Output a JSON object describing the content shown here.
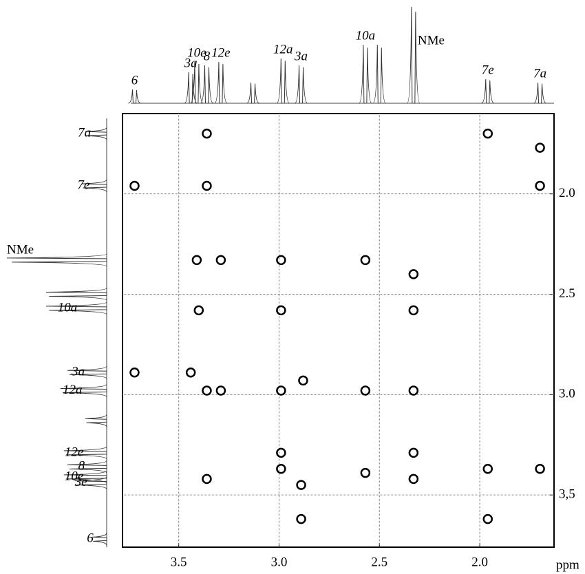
{
  "chart_data": {
    "type": "scatter",
    "xlabel": "ppm",
    "xlim": [
      3.78,
      1.63
    ],
    "ylim": [
      1.6,
      3.76
    ],
    "xticks": [
      {
        "value": 3.5,
        "label": "3.5"
      },
      {
        "value": 3.0,
        "label": "3.0"
      },
      {
        "value": 2.5,
        "label": "2.5"
      },
      {
        "value": 2.0,
        "label": "2.0"
      }
    ],
    "yticks": [
      {
        "value": 2.0,
        "label": "2.0"
      },
      {
        "value": 2.5,
        "label": "2.5"
      },
      {
        "value": 3.0,
        "label": "3.0"
      },
      {
        "value": 3.5,
        "label": "3,5"
      }
    ],
    "grid": true,
    "color": "#000000",
    "x": [
      3.36,
      1.96,
      1.7,
      3.72,
      3.36,
      1.7,
      3.41,
      3.29,
      2.99,
      2.57,
      2.33,
      3.4,
      2.99,
      2.33,
      3.72,
      3.44,
      3.36,
      3.29,
      2.99,
      2.57,
      2.33,
      2.88,
      2.99,
      2.99,
      2.33,
      2.57,
      2.89,
      2.33,
      1.96,
      1.7,
      3.36,
      2.89,
      1.96
    ],
    "values": [
      1.7,
      1.7,
      1.77,
      1.96,
      1.96,
      1.96,
      2.33,
      2.33,
      2.33,
      2.33,
      2.4,
      2.58,
      2.58,
      2.58,
      2.89,
      2.89,
      2.98,
      2.98,
      2.98,
      2.98,
      2.98,
      2.93,
      3.29,
      3.37,
      3.29,
      3.39,
      3.45,
      3.42,
      3.37,
      3.37,
      3.42,
      3.62,
      3.62
    ],
    "signals": [
      {
        "shift": 3.72,
        "intensity": 20,
        "top_label": "6",
        "left_label": "6"
      },
      {
        "shift": 3.44,
        "intensity": 45,
        "top_label": "3a",
        "left_label": "3e"
      },
      {
        "shift": 3.41,
        "intensity": 60,
        "top_label": "10e",
        "left_label": "10e"
      },
      {
        "shift": 3.36,
        "intensity": 55,
        "top_label": "8",
        "left_label": "8"
      },
      {
        "shift": 3.29,
        "intensity": 60,
        "top_label": "12e",
        "left_label": "12e"
      },
      {
        "shift": 3.13,
        "intensity": 30,
        "top_label": null,
        "left_label": null
      },
      {
        "shift": 2.98,
        "intensity": 65,
        "top_label": "12a",
        "left_label": "12a"
      },
      {
        "shift": 2.89,
        "intensity": 55,
        "top_label": "3a",
        "left_label": "3a"
      },
      {
        "shift": 2.57,
        "intensity": 85,
        "top_label": "10a",
        "left_label": "10a"
      },
      {
        "shift": 2.5,
        "intensity": 85,
        "top_label": null,
        "left_label": null
      },
      {
        "shift": 2.33,
        "intensity": 140,
        "top_label": "NMe",
        "left_label": "NMe"
      },
      {
        "shift": 1.96,
        "intensity": 35,
        "top_label": "7e",
        "left_label": "7e"
      },
      {
        "shift": 1.7,
        "intensity": 30,
        "top_label": "7a",
        "left_label": "7a"
      }
    ]
  }
}
